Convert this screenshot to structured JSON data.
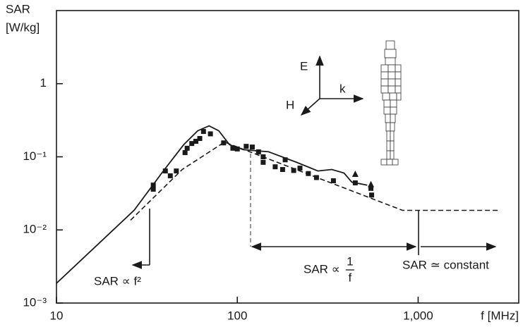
{
  "chart_data": {
    "type": "line",
    "ylabel": [
      "SAR",
      "[W/kg]"
    ],
    "xlabel": "f [MHz]",
    "log_x": true,
    "log_y": true,
    "xlim": [
      10,
      3600
    ],
    "ylim": [
      0.001,
      10
    ],
    "xticks": [
      10,
      100,
      {
        "value": 1000,
        "label": "1,000"
      }
    ],
    "yticks": [
      {
        "value": 0.001,
        "label": "10⁻³"
      },
      {
        "value": 0.01,
        "label": "10⁻²"
      },
      {
        "value": 0.1,
        "label": "10⁻¹"
      },
      1
    ],
    "series": [
      {
        "style": "solid",
        "color": "#1a1a1a",
        "x": [
          10,
          26.9,
          39,
          50.5,
          60.4,
          69.8,
          79,
          90.6,
          108,
          149,
          213,
          279,
          333,
          389,
          430,
          523
        ],
        "values": [
          0.00186,
          0.0186,
          0.064,
          0.146,
          0.227,
          0.265,
          0.227,
          0.146,
          0.125,
          0.117,
          0.084,
          0.064,
          0.067,
          0.06,
          0.045,
          0.041
        ]
      },
      {
        "style": "dashed",
        "color": "#1a1a1a",
        "x": [
          25.7,
          49.6,
          85,
          820,
          2840
        ],
        "values": [
          0.0136,
          0.067,
          0.159,
          0.0185,
          0.0185
        ]
      },
      {
        "style": "square",
        "color": "#1a1a1a",
        "x": [
          34.3,
          34.3,
          40,
          42.6,
          46,
          51.4,
          52.8,
          56,
          59,
          62,
          65,
          71,
          84,
          94.5,
          100,
          112,
          121,
          131,
          139,
          139,
          162,
          178,
          184,
          205,
          222,
          247,
          274,
          340,
          449,
          548,
          553
        ],
        "values": [
          0.041,
          0.036,
          0.064,
          0.055,
          0.064,
          0.114,
          0.131,
          0.152,
          0.163,
          0.178,
          0.222,
          0.206,
          0.155,
          0.131,
          0.128,
          0.139,
          0.136,
          0.117,
          0.1,
          0.084,
          0.073,
          0.067,
          0.091,
          0.065,
          0.07,
          0.059,
          0.052,
          0.047,
          0.044,
          0.037,
          0.03
        ]
      },
      {
        "style": "triangle",
        "color": "#1a1a1a",
        "x": [
          449,
          548
        ],
        "values": [
          0.058,
          0.042
        ]
      }
    ],
    "annotations": [
      {
        "text": "SAR ∝ f²"
      },
      {
        "text": "SAR ∝",
        "numerator": "1",
        "denominator": "f"
      },
      {
        "text": "SAR ≃ constant"
      }
    ],
    "field_labels": [
      "E",
      "k",
      "H"
    ]
  }
}
